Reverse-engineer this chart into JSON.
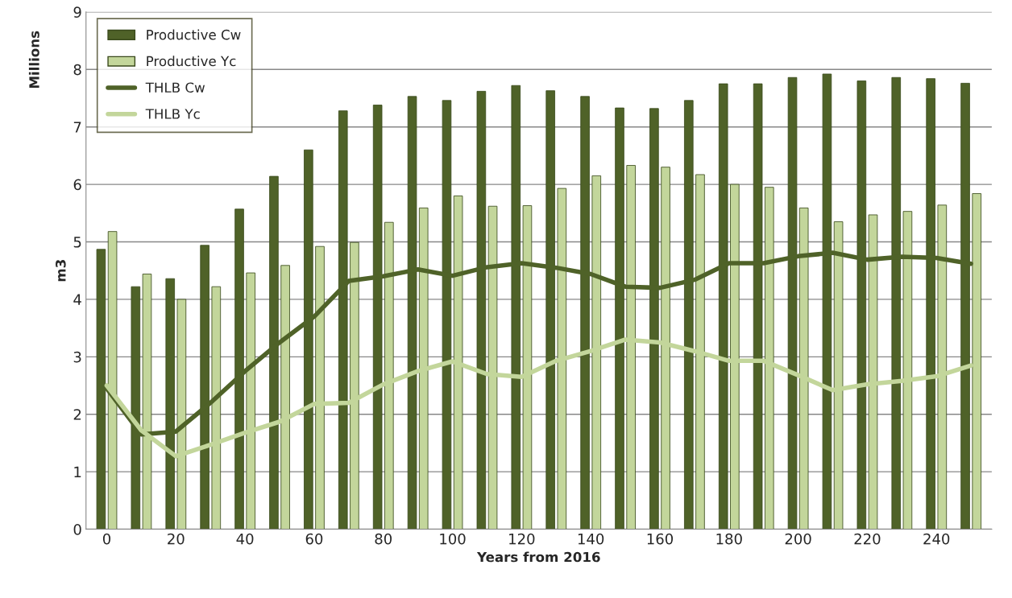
{
  "chart_data": {
    "type": "bar",
    "xlabel": "Years from 2016",
    "ylabel": "m3",
    "annotations": [
      "Millions"
    ],
    "categories": [
      "0",
      null,
      "20",
      null,
      "40",
      null,
      "60",
      null,
      "80",
      null,
      "100",
      null,
      "120",
      null,
      "140",
      null,
      "160",
      null,
      "180",
      null,
      "200",
      null,
      "220",
      null,
      "240",
      null
    ],
    "series": [
      {
        "name": "Productive Cw",
        "color": "#4f6228",
        "values": [
          4.87,
          4.22,
          4.36,
          4.94,
          5.57,
          6.14,
          6.6,
          7.28,
          7.38,
          7.53,
          7.46,
          7.62,
          7.72,
          7.63,
          7.53,
          7.33,
          7.32,
          7.46,
          7.75,
          7.75,
          7.86,
          7.92,
          7.8,
          7.86,
          7.84,
          7.76
        ]
      },
      {
        "name": "Productive Yc",
        "color": "#c3d69b",
        "values": [
          5.18,
          4.44,
          4.0,
          4.22,
          4.46,
          4.59,
          4.92,
          4.99,
          5.34,
          5.59,
          5.8,
          5.62,
          5.63,
          5.93,
          6.15,
          6.33,
          6.3,
          6.17,
          6.0,
          5.95,
          5.59,
          5.35,
          5.47,
          5.53,
          5.64,
          5.84
        ]
      },
      {
        "name": "THLB Cw",
        "type": "line",
        "color": "#4f6228",
        "values": [
          2.45,
          1.65,
          1.7,
          2.2,
          2.75,
          3.25,
          3.7,
          4.32,
          4.4,
          4.52,
          4.41,
          4.56,
          4.63,
          4.55,
          4.44,
          4.22,
          4.2,
          4.34,
          4.63,
          4.63,
          4.75,
          4.81,
          4.69,
          4.74,
          4.72,
          4.62
        ]
      },
      {
        "name": "THLB Yc",
        "type": "line",
        "color": "#c3d69b",
        "values": [
          2.5,
          1.72,
          1.27,
          1.47,
          1.68,
          1.87,
          2.18,
          2.2,
          2.52,
          2.75,
          2.92,
          2.7,
          2.65,
          2.93,
          3.1,
          3.3,
          3.25,
          3.1,
          2.93,
          2.93,
          2.68,
          2.42,
          2.52,
          2.58,
          2.66,
          2.85
        ]
      }
    ],
    "ylim": [
      0,
      9
    ],
    "yticks": [
      0,
      1,
      2,
      3,
      4,
      5,
      6,
      7,
      8,
      9
    ],
    "grid": "y",
    "legend": "top left",
    "marker": "none",
    "line_style": "solid"
  }
}
